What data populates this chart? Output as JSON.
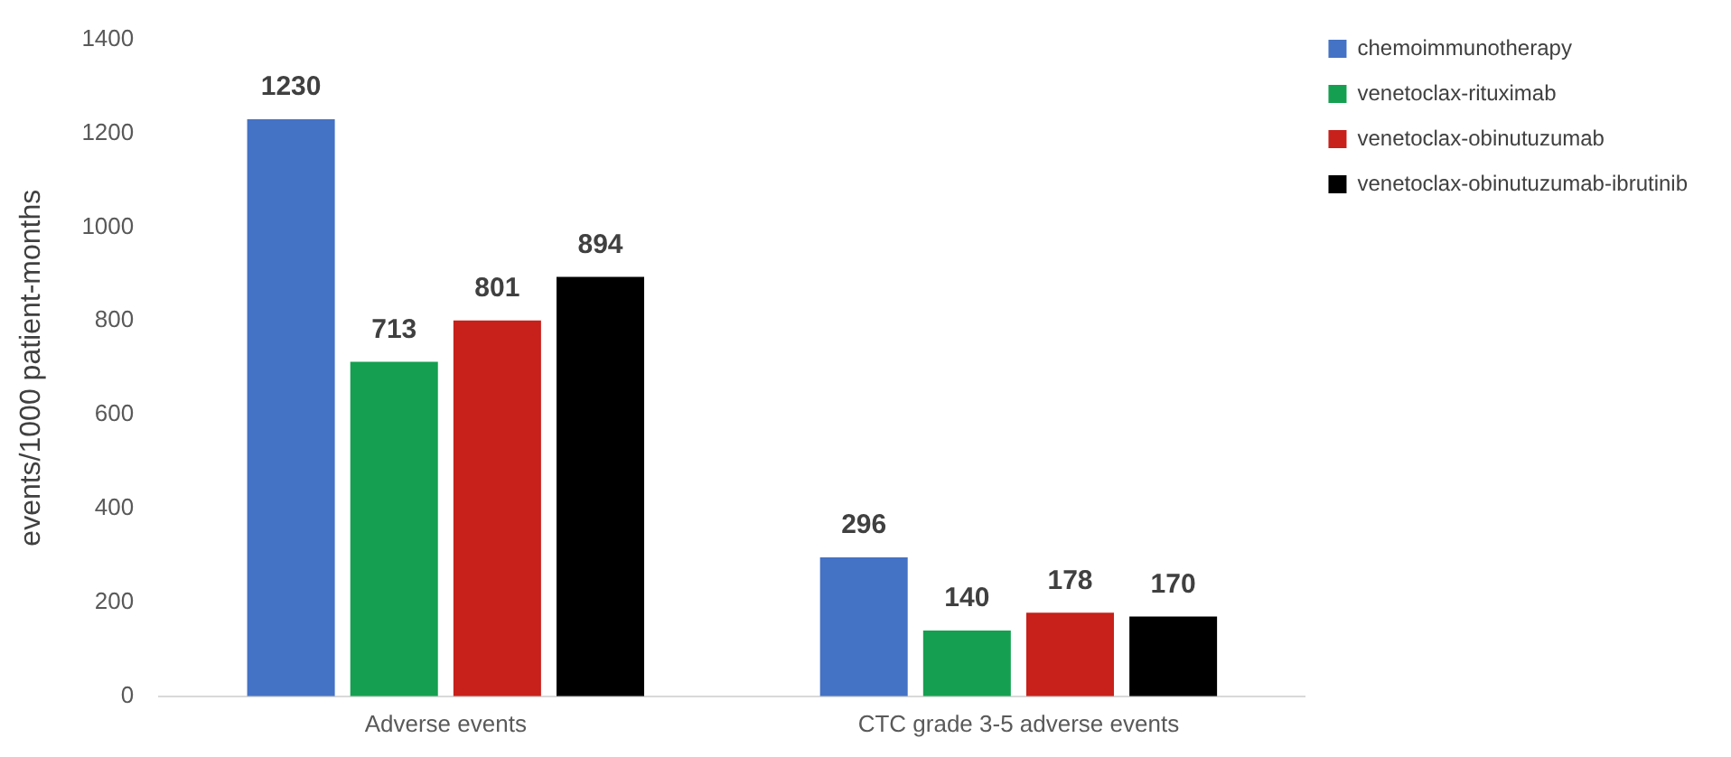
{
  "chart_data": {
    "type": "bar",
    "ylabel": "events/1000 patient-months",
    "categories": [
      "Adverse events",
      "CTC grade 3-5 adverse events"
    ],
    "series": [
      {
        "name": "chemoimmunotherapy",
        "color": "#4472c4",
        "values": [
          1230,
          296
        ]
      },
      {
        "name": "venetoclax-rituximab",
        "color": "#14a050",
        "values": [
          713,
          140
        ]
      },
      {
        "name": "venetoclax-obinutuzumab",
        "color": "#c8201a",
        "values": [
          801,
          178
        ]
      },
      {
        "name": "venetoclax-obinutuzumab-ibrutinib",
        "color": "#000000",
        "values": [
          894,
          170
        ]
      }
    ],
    "ylim": [
      0,
      1400
    ],
    "yticks": [
      0,
      200,
      400,
      600,
      800,
      1000,
      1200,
      1400
    ],
    "data_labels": true,
    "legend": "top right",
    "grid": false
  }
}
